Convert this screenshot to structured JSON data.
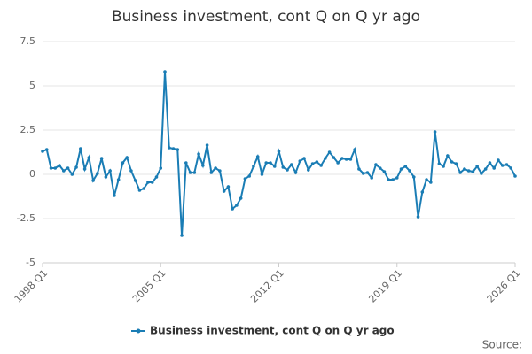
{
  "chart_data": {
    "type": "line",
    "title": "Business investment, cont Q on Q yr ago",
    "source": "Source:",
    "categories": [
      "1998 Q1",
      null,
      null,
      null,
      null,
      null,
      null,
      null,
      null,
      null,
      null,
      null,
      null,
      null,
      null,
      null,
      null,
      null,
      null,
      null,
      null,
      null,
      null,
      null,
      null,
      null,
      null,
      null,
      "2005 Q1",
      null,
      null,
      null,
      null,
      null,
      null,
      null,
      null,
      null,
      null,
      null,
      null,
      null,
      null,
      null,
      null,
      null,
      null,
      null,
      null,
      null,
      null,
      null,
      null,
      null,
      null,
      null,
      "2012 Q1",
      null,
      null,
      null,
      null,
      null,
      null,
      null,
      null,
      null,
      null,
      null,
      null,
      null,
      null,
      null,
      null,
      null,
      null,
      null,
      null,
      null,
      null,
      null,
      null,
      null,
      null,
      null,
      "2019 Q1",
      null,
      null,
      null,
      null,
      null,
      null,
      null,
      null,
      null,
      null,
      null,
      null,
      null,
      null,
      null,
      null,
      null,
      null,
      null,
      null,
      null,
      null,
      null,
      null,
      null,
      null,
      null,
      "2026 Q1"
    ],
    "series": [
      {
        "name": "Business investment, cont Q on Q yr ago",
        "color": "#1a7db5",
        "values": [
          1.3,
          1.4,
          0.35,
          0.35,
          0.5,
          0.2,
          0.35,
          0,
          0.4,
          1.45,
          0.3,
          0.95,
          -0.35,
          0.05,
          0.9,
          -0.15,
          0.2,
          -1.2,
          -0.3,
          0.65,
          0.95,
          0.2,
          -0.35,
          -0.9,
          -0.8,
          -0.45,
          -0.45,
          -0.15,
          0.35,
          5.8,
          1.5,
          1.45,
          1.4,
          -3.45,
          0.65,
          0.1,
          0.1,
          1.15,
          0.5,
          1.65,
          0.1,
          0.35,
          0.2,
          -0.95,
          -0.7,
          -1.95,
          -1.75,
          -1.35,
          -0.25,
          -0.1,
          0.45,
          1.0,
          0,
          0.65,
          0.65,
          0.45,
          1.3,
          0.4,
          0.25,
          0.55,
          0.1,
          0.75,
          0.9,
          0.25,
          0.6,
          0.7,
          0.5,
          0.9,
          1.25,
          0.95,
          0.65,
          0.9,
          0.85,
          0.85,
          1.4,
          0.3,
          0.05,
          0.1,
          -0.2,
          0.55,
          0.35,
          0.15,
          -0.3,
          -0.3,
          -0.2,
          0.3,
          0.45,
          0.2,
          -0.15,
          -2.4,
          -1.0,
          -0.3,
          -0.45,
          2.4,
          0.6,
          0.45,
          1.05,
          0.7,
          0.6,
          0.1,
          0.3,
          0.2,
          0.15,
          0.45,
          0.05,
          0.3,
          0.65,
          0.35,
          0.8,
          0.5,
          0.55,
          0.35,
          -0.1
        ]
      }
    ],
    "ylim": [
      -5,
      7.5
    ],
    "yticks": [
      -5,
      -2.5,
      0,
      2.5,
      5,
      7.5
    ],
    "grid": true
  }
}
